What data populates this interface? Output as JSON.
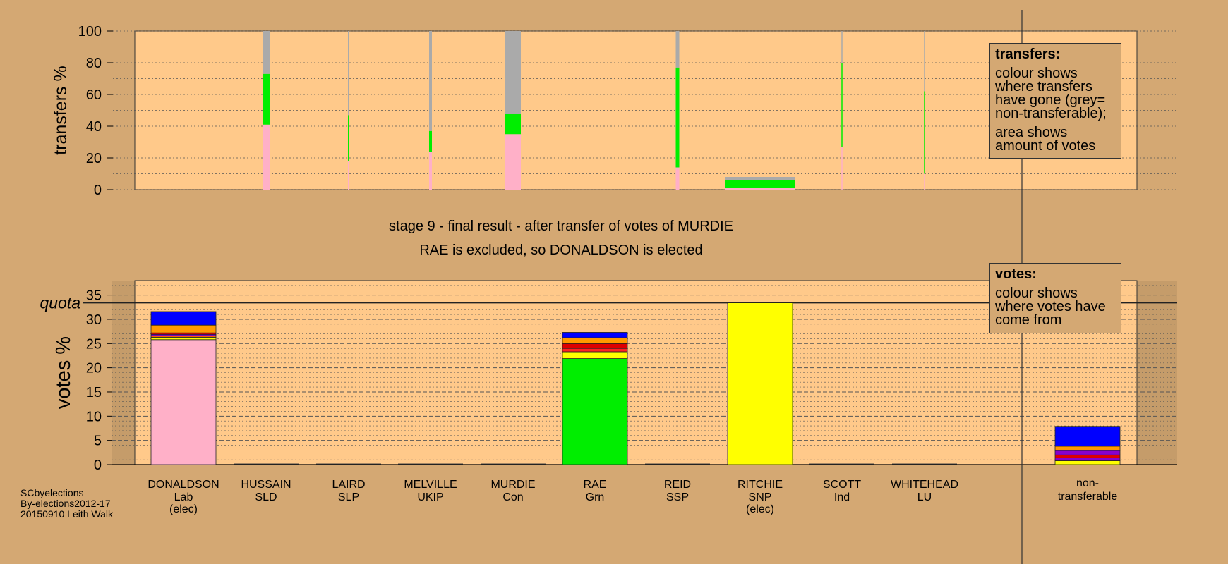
{
  "colors": {
    "page_bg": "#d4a873",
    "plot_bg": "#ffc98a",
    "grey": "#aaaaaa",
    "DONALDSON": "#ffb0c8",
    "HUSSAIN": "#ff9900",
    "LAIRD": "#dd0000",
    "MELVILLE": "#8800cc",
    "MURDIE": "#0000ff",
    "RAE": "#00ee00",
    "REID": "#ff2222",
    "RITCHIE": "#ffff00",
    "SCOTT": "#ffddaa",
    "WHITEHEAD": "#ff6600"
  },
  "chart_data": [
    {
      "type": "bar",
      "id": "transfers",
      "ylabel": "transfers %",
      "ylim": [
        0,
        100
      ],
      "yticks": [
        "0",
        "20",
        "40",
        "60",
        "80",
        "100"
      ],
      "categories": [
        "DONALDSON",
        "HUSSAIN",
        "LAIRD",
        "MELVILLE",
        "MURDIE",
        "RAE",
        "REID",
        "RITCHIE",
        "SCOTT",
        "WHITEHEAD"
      ],
      "bars": [
        {
          "category": "HUSSAIN",
          "width_share": 0.1,
          "segments": [
            {
              "color": "DONALDSON",
              "value": 41
            },
            {
              "color": "RAE",
              "value": 32
            },
            {
              "color": "grey",
              "value": 27
            }
          ]
        },
        {
          "category": "LAIRD",
          "width_share": 0.02,
          "segments": [
            {
              "color": "DONALDSON",
              "value": 18
            },
            {
              "color": "RAE",
              "value": 29
            },
            {
              "color": "grey",
              "value": 53
            }
          ]
        },
        {
          "category": "MELVILLE",
          "width_share": 0.04,
          "segments": [
            {
              "color": "DONALDSON",
              "value": 24
            },
            {
              "color": "RAE",
              "value": 13
            },
            {
              "color": "grey",
              "value": 63
            }
          ]
        },
        {
          "category": "MURDIE",
          "width_share": 0.22,
          "segments": [
            {
              "color": "DONALDSON",
              "value": 35
            },
            {
              "color": "RAE",
              "value": 13
            },
            {
              "color": "grey",
              "value": 52
            }
          ]
        },
        {
          "category": "REID",
          "width_share": 0.05,
          "segments": [
            {
              "color": "DONALDSON",
              "value": 14
            },
            {
              "color": "RAE",
              "value": 63
            },
            {
              "color": "grey",
              "value": 23
            }
          ]
        },
        {
          "category": "RITCHIE",
          "width_share": 1.0,
          "segments": [
            {
              "color": "DONALDSON",
              "value": 1
            },
            {
              "color": "RAE",
              "value": 5
            },
            {
              "color": "grey",
              "value": 2
            }
          ]
        },
        {
          "category": "SCOTT",
          "width_share": 0.015,
          "segments": [
            {
              "color": "DONALDSON",
              "value": 27
            },
            {
              "color": "RAE",
              "value": 53
            },
            {
              "color": "grey",
              "value": 20
            }
          ]
        },
        {
          "category": "WHITEHEAD",
          "width_share": 0.015,
          "segments": [
            {
              "color": "DONALDSON",
              "value": 10
            },
            {
              "color": "RAE",
              "value": 52
            },
            {
              "color": "grey",
              "value": 38
            }
          ]
        }
      ]
    },
    {
      "type": "bar",
      "id": "votes",
      "ylabel": "votes %",
      "ylim": [
        0,
        38
      ],
      "yticks": [
        "0",
        "5",
        "10",
        "15",
        "20",
        "25",
        "30",
        "35"
      ],
      "quota": 33.4,
      "quota_label": "quota",
      "categories": [
        {
          "name": "DONALDSON",
          "party": "Lab",
          "status": "(elec)"
        },
        {
          "name": "HUSSAIN",
          "party": "SLD",
          "status": ""
        },
        {
          "name": "LAIRD",
          "party": "SLP",
          "status": ""
        },
        {
          "name": "MELVILLE",
          "party": "UKIP",
          "status": ""
        },
        {
          "name": "MURDIE",
          "party": "Con",
          "status": ""
        },
        {
          "name": "RAE",
          "party": "Grn",
          "status": ""
        },
        {
          "name": "REID",
          "party": "SSP",
          "status": ""
        },
        {
          "name": "RITCHIE",
          "party": "SNP",
          "status": "(elec)"
        },
        {
          "name": "SCOTT",
          "party": "Ind",
          "status": ""
        },
        {
          "name": "WHITEHEAD",
          "party": "LU",
          "status": ""
        }
      ],
      "nontransferable_label": [
        "non-",
        "transferable"
      ],
      "bars": [
        {
          "category": "DONALDSON",
          "segments": [
            {
              "color": "DONALDSON",
              "value": 25.8
            },
            {
              "color": "RITCHIE",
              "value": 0.5
            },
            {
              "color": "WHITEHEAD",
              "value": 0.3
            },
            {
              "color": "MELVILLE",
              "value": 0.3
            },
            {
              "color": "LAIRD",
              "value": 0.3
            },
            {
              "color": "HUSSAIN",
              "value": 1.6
            },
            {
              "color": "MURDIE",
              "value": 2.8
            }
          ]
        },
        {
          "category": "RAE",
          "segments": [
            {
              "color": "RAE",
              "value": 21.9
            },
            {
              "color": "RITCHIE",
              "value": 1.4
            },
            {
              "color": "REID",
              "value": 0.7
            },
            {
              "color": "LAIRD",
              "value": 1.0
            },
            {
              "color": "HUSSAIN",
              "value": 1.2
            },
            {
              "color": "MURDIE",
              "value": 1.1
            }
          ]
        },
        {
          "category": "RITCHIE",
          "segments": [
            {
              "color": "RITCHIE",
              "value": 33.4
            }
          ]
        },
        {
          "category": "nontransferable",
          "segments": [
            {
              "color": "RITCHIE",
              "value": 0.8
            },
            {
              "color": "MELVILLE",
              "value": 0.6
            },
            {
              "color": "LAIRD",
              "value": 0.6
            },
            {
              "color": "MELVILLE",
              "value": 0.9
            },
            {
              "color": "HUSSAIN",
              "value": 0.9
            },
            {
              "color": "MURDIE",
              "value": 4.1
            }
          ]
        }
      ]
    }
  ],
  "stage_title": "stage 9 - final result - after transfer of votes of MURDIE",
  "stage_subtitle": "RAE is excluded, so DONALDSON is elected",
  "legend_transfers": {
    "title": "transfers:",
    "line1": "colour shows where transfers have gone (grey= non-transferable);",
    "line2": "area shows amount of votes"
  },
  "legend_votes": {
    "title": "votes:",
    "line1": "colour shows where votes have come from"
  },
  "credit": [
    "SCbyelections",
    "By-elections2012-17",
    "20150910 Leith Walk"
  ]
}
